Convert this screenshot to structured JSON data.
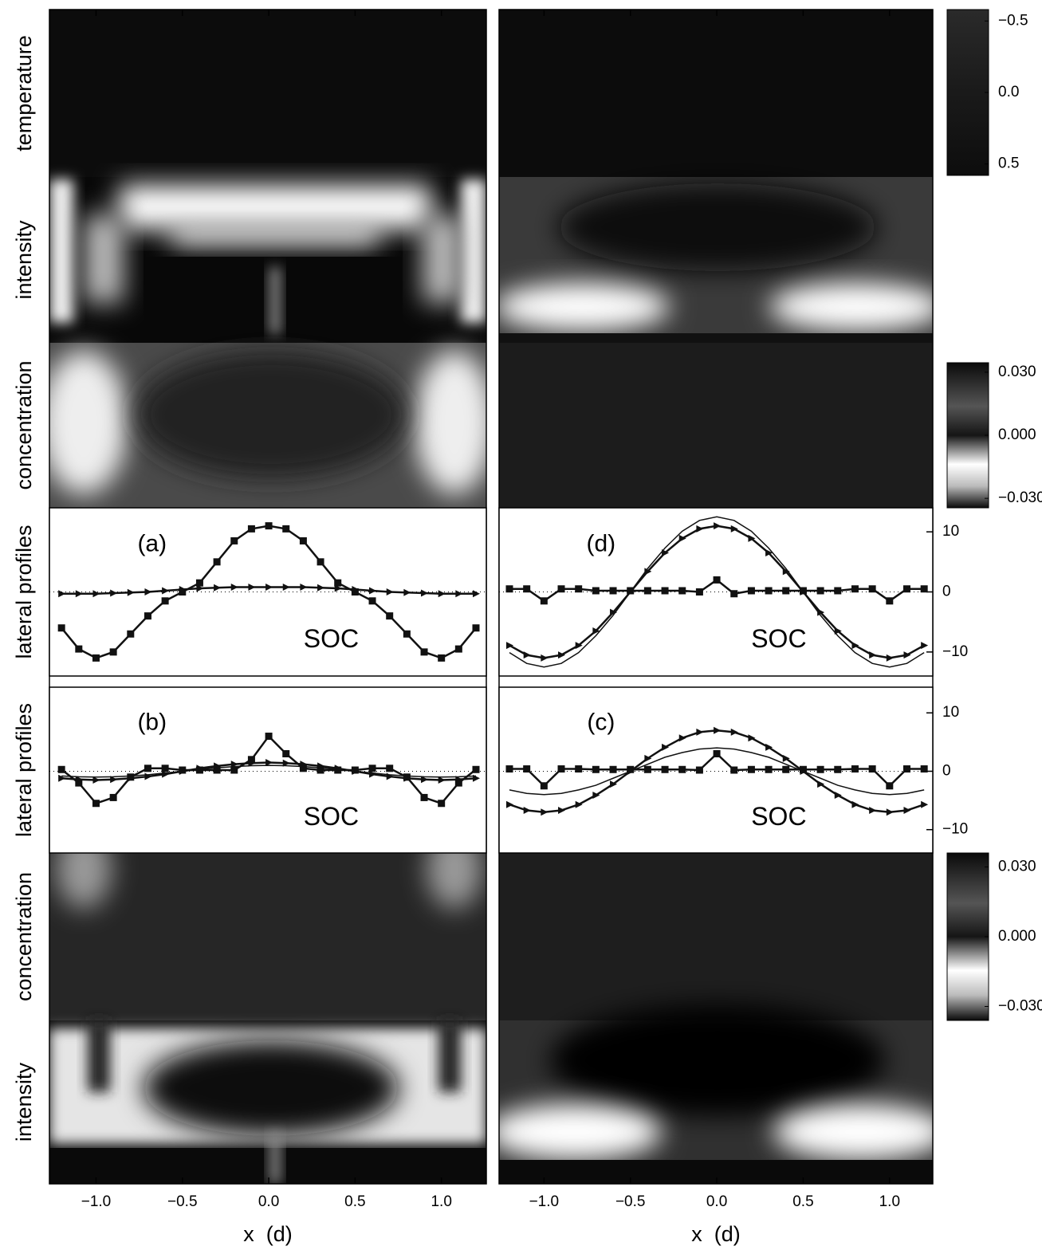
{
  "row_labels": [
    "temperature",
    "intensity",
    "concentration",
    "lateral profiles",
    "lateral profiles",
    "concentration",
    "intensity"
  ],
  "colorbars": [
    {
      "lim": [
        -0.58,
        0.58
      ],
      "ticks": [
        {
          "value": -0.5,
          "label": "−0.5"
        },
        {
          "value": 0,
          "label": "0.0"
        },
        0.5
      ]
    },
    {
      "lim": [
        0.0345,
        -0.0345
      ],
      "ticks": [
        {
          "value": 0.03,
          "label": "0.030"
        },
        {
          "value": 0,
          "label": "0.000"
        },
        {
          "value": -0.03,
          "label": "−0.030"
        }
      ]
    },
    {
      "lim": [
        0.036,
        -0.036
      ],
      "ticks": [
        {
          "value": 0.03,
          "label": "0.030"
        },
        {
          "value": 0,
          "label": "0.000"
        },
        {
          "value": -0.03,
          "label": "−0.030"
        }
      ]
    }
  ],
  "x_axes": [
    {
      "label": "x  (d)",
      "xlim": [
        -1.27,
        1.26
      ],
      "xticks": [
        {
          "value": -1,
          "label": "−1.0"
        },
        {
          "value": -0.5,
          "label": "−0.5"
        },
        {
          "value": 0,
          "label": "0.0"
        },
        0.5,
        {
          "value": 1,
          "label": "1.0"
        }
      ]
    },
    {
      "label": "x  (d)",
      "xlim": [
        -1.26,
        1.25
      ],
      "xticks": [
        {
          "value": -1,
          "label": "−1.0"
        },
        {
          "value": -0.5,
          "label": "−0.5"
        },
        {
          "value": 0,
          "label": "0.0"
        },
        0.5,
        {
          "value": 1,
          "label": "1.0"
        }
      ]
    }
  ],
  "chart_data": [
    {
      "type": "line",
      "annotation": "(a)",
      "label": "SOC",
      "xlim": [
        -1.27,
        1.26
      ],
      "ylim": [
        -14,
        14
      ],
      "x": [
        -1.2,
        -1.1,
        -1.0,
        -0.9,
        -0.8,
        -0.7,
        -0.6,
        -0.5,
        -0.4,
        -0.3,
        -0.2,
        -0.1,
        0.0,
        0.1,
        0.2,
        0.3,
        0.4,
        0.5,
        0.6,
        0.7,
        0.8,
        0.9,
        1.0,
        1.1,
        1.2
      ],
      "series": [
        {
          "marker": "square",
          "color": "#111111",
          "values": [
            -6,
            -9.5,
            -11,
            -10,
            -7,
            -4,
            -1.5,
            0,
            1.5,
            5,
            8.5,
            10.5,
            11,
            10.5,
            8.5,
            5,
            1.5,
            0,
            -1.5,
            -4,
            -7,
            -10,
            -11,
            -9.5,
            -6
          ]
        },
        {
          "marker": "triangle",
          "color": "#111111",
          "values": [
            -0.3,
            -0.3,
            -0.3,
            -0.2,
            -0.1,
            0,
            0.2,
            0.4,
            0.6,
            0.7,
            0.8,
            0.8,
            0.8,
            0.8,
            0.8,
            0.7,
            0.6,
            0.4,
            0.2,
            0,
            -0.1,
            -0.2,
            -0.3,
            -0.3,
            -0.3
          ]
        }
      ]
    },
    {
      "type": "line",
      "annotation": "(d)",
      "label": "SOC",
      "xlim": [
        -1.26,
        1.25
      ],
      "ylim": [
        -14,
        14
      ],
      "yticks": [
        10,
        0,
        {
          "value": -10,
          "label": "−10"
        }
      ],
      "x": [
        -1.2,
        -1.1,
        -1.0,
        -0.9,
        -0.8,
        -0.7,
        -0.6,
        -0.5,
        -0.4,
        -0.3,
        -0.2,
        -0.1,
        0.0,
        0.1,
        0.2,
        0.3,
        0.4,
        0.5,
        0.6,
        0.7,
        0.8,
        0.9,
        1.0,
        1.1,
        1.2
      ],
      "series": [
        {
          "marker": "square",
          "color": "#111111",
          "values": [
            0.5,
            0.5,
            -1.5,
            0.5,
            0.5,
            0.2,
            0.2,
            0.2,
            0.2,
            0.2,
            0.2,
            0,
            2,
            -0.3,
            0.2,
            0.2,
            0.2,
            0.2,
            0.2,
            0.2,
            0.5,
            0.5,
            -1.5,
            0.5,
            0.5
          ]
        },
        {
          "marker": "triangle",
          "color": "#111111",
          "values": [
            -8.9,
            -10.5,
            -11,
            -10.5,
            -8.9,
            -6.5,
            -3.4,
            0,
            3.4,
            6.5,
            8.9,
            10.5,
            11,
            10.5,
            8.9,
            6.5,
            3.4,
            0,
            -3.4,
            -6.5,
            -8.9,
            -10.5,
            -11,
            -10.5,
            -8.9
          ]
        },
        {
          "marker": "none",
          "color": "#111111",
          "values": [
            -10.1,
            -11.9,
            -12.5,
            -11.9,
            -10.1,
            -7.3,
            -3.9,
            0,
            3.9,
            7.3,
            10.1,
            11.9,
            12.5,
            11.9,
            10.1,
            7.3,
            3.9,
            0,
            -3.9,
            -7.3,
            -10.1,
            -11.9,
            -12.5,
            -11.9,
            -10.1
          ]
        }
      ]
    },
    {
      "type": "line",
      "annotation": "(b)",
      "label": "SOC",
      "xlim": [
        -1.27,
        1.26
      ],
      "ylim": [
        -14,
        14.4
      ],
      "x": [
        -1.2,
        -1.1,
        -1.0,
        -0.9,
        -0.8,
        -0.7,
        -0.6,
        -0.5,
        -0.4,
        -0.3,
        -0.2,
        -0.1,
        0.0,
        0.1,
        0.2,
        0.3,
        0.4,
        0.5,
        0.6,
        0.7,
        0.8,
        0.9,
        1.0,
        1.1,
        1.2
      ],
      "series": [
        {
          "marker": "square",
          "color": "#111111",
          "values": [
            0.3,
            -2,
            -5.5,
            -4.5,
            -1,
            0.5,
            0.5,
            0.2,
            0.2,
            0.2,
            0.2,
            2,
            6,
            3,
            0.5,
            0.2,
            0.2,
            0.2,
            0.5,
            0.5,
            -1,
            -4.5,
            -5.5,
            -2,
            0.3
          ]
        },
        {
          "marker": "triangle",
          "color": "#111111",
          "values": [
            -1.2,
            -1.4,
            -1.5,
            -1.4,
            -1.2,
            -0.9,
            -0.5,
            0,
            0.5,
            0.9,
            1.2,
            1.4,
            1.5,
            1.4,
            1.2,
            0.9,
            0.5,
            0,
            -0.5,
            -0.9,
            -1.2,
            -1.4,
            -1.5,
            -1.4,
            -1.2
          ]
        },
        {
          "marker": "none",
          "color": "#111111",
          "values": [
            -0.8,
            -0.95,
            -1,
            -0.95,
            -0.8,
            -0.6,
            -0.3,
            0,
            0.3,
            0.6,
            0.8,
            0.95,
            1,
            0.95,
            0.8,
            0.6,
            0.3,
            0,
            -0.3,
            -0.6,
            -0.8,
            -0.95,
            -1,
            -0.95,
            -0.8
          ]
        }
      ]
    },
    {
      "type": "line",
      "annotation": "(c)",
      "label": "SOC",
      "xlim": [
        -1.26,
        1.25
      ],
      "ylim": [
        -14,
        14.4
      ],
      "yticks": [
        10,
        0,
        {
          "value": -10,
          "label": "−10"
        }
      ],
      "x": [
        -1.2,
        -1.1,
        -1.0,
        -0.9,
        -0.8,
        -0.7,
        -0.6,
        -0.5,
        -0.4,
        -0.3,
        -0.2,
        -0.1,
        0.0,
        0.1,
        0.2,
        0.3,
        0.4,
        0.5,
        0.6,
        0.7,
        0.8,
        0.9,
        1.0,
        1.1,
        1.2
      ],
      "series": [
        {
          "marker": "square",
          "color": "#111111",
          "values": [
            0.4,
            0.4,
            -2.5,
            0.4,
            0.4,
            0.3,
            0.3,
            0.3,
            0.3,
            0.3,
            0.3,
            0.2,
            3,
            0.2,
            0.3,
            0.3,
            0.3,
            0.3,
            0.3,
            0.3,
            0.4,
            0.4,
            -2.5,
            0.4,
            0.4
          ]
        },
        {
          "marker": "triangle",
          "color": "#111111",
          "values": [
            -5.7,
            -6.7,
            -7,
            -6.7,
            -5.7,
            -4.1,
            -2.2,
            0,
            2.2,
            4.1,
            5.7,
            6.7,
            7,
            6.7,
            5.7,
            4.1,
            2.2,
            0,
            -2.2,
            -4.1,
            -5.7,
            -6.7,
            -7,
            -6.7,
            -5.7
          ]
        },
        {
          "marker": "none",
          "color": "#111111",
          "values": [
            -3.2,
            -3.8,
            -4,
            -3.8,
            -3.2,
            -2.4,
            -1.2,
            0,
            1.2,
            2.4,
            3.2,
            3.8,
            4,
            3.8,
            3.2,
            2.4,
            1.2,
            0,
            -1.2,
            -2.4,
            -3.2,
            -3.8,
            -4,
            -3.8,
            -3.2
          ]
        }
      ]
    }
  ]
}
